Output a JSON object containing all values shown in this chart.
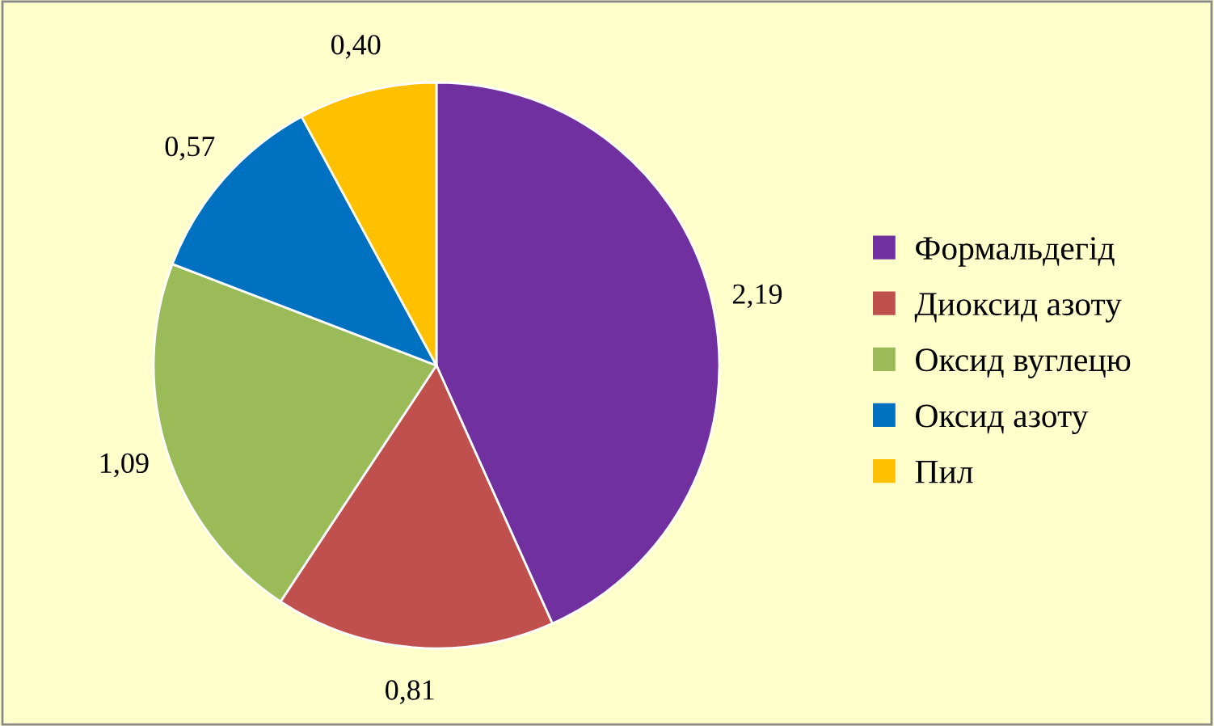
{
  "chart_data": {
    "type": "pie",
    "categories": [
      "Формальдегід",
      "Диоксид азоту",
      "Оксид вуглецю",
      "Оксид азоту",
      "Пил"
    ],
    "values": [
      2.19,
      0.81,
      1.09,
      0.57,
      0.4
    ],
    "value_labels": [
      "2,19",
      "0,81",
      "1,09",
      "0,57",
      "0,40"
    ],
    "colors": [
      "#7030a0",
      "#c0504d",
      "#9bbb59",
      "#0070c0",
      "#ffc000"
    ],
    "legend": "right"
  }
}
